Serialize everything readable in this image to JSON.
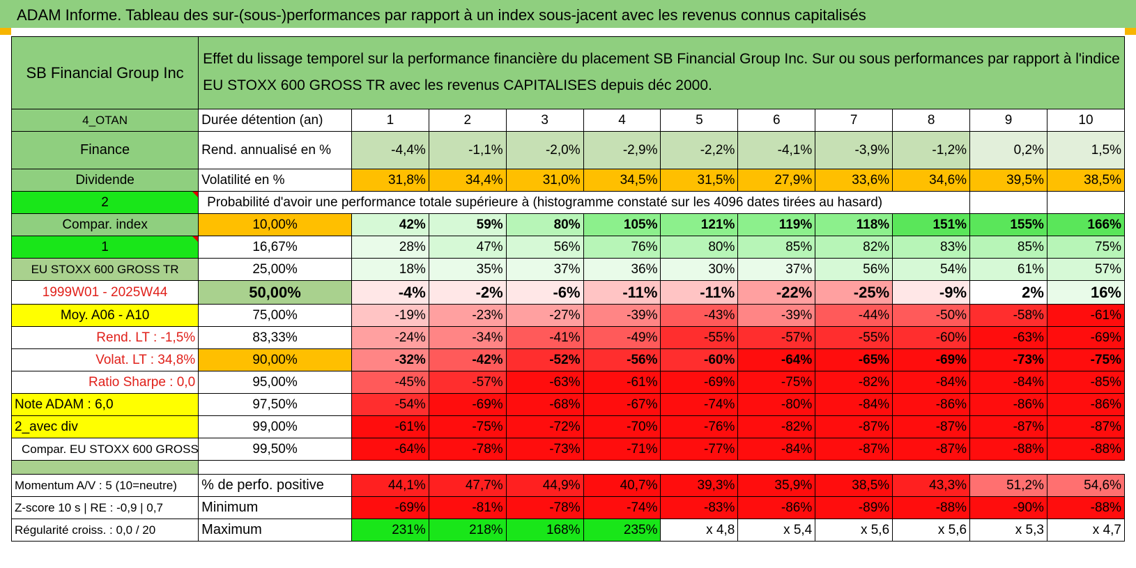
{
  "header": {
    "title": "ADAM Informe. Tableau des sur-(sous-)performances par rapport à un index sous-jacent avec les revenus connus capitalisés",
    "company": "SB Financial Group Inc",
    "description": "Effet du lissage temporel sur la performance financière du placement SB Financial Group Inc. Sur ou sous performances par rapport à l'indice EU STOXX 600 GROSS TR avec les revenus CAPITALISES depuis déc 2000."
  },
  "colors": {
    "header_green": "#8fcf7f",
    "bright_green": "#19e619",
    "yellow": "#ffff00",
    "orange": "#ffbf00",
    "deep_red": "#ff0000"
  },
  "horizons": [
    "1",
    "2",
    "3",
    "4",
    "5",
    "6",
    "7",
    "8",
    "9",
    "10"
  ],
  "side": {
    "code": "4_OTAN",
    "sector": "Finance",
    "category": "Dividende",
    "sel1": "2",
    "compar_label": "Compar. index",
    "sel2": "1",
    "index_name": "EU STOXX 600 GROSS TR",
    "period": "1999W01 - 2025W44",
    "avg": "Moy. A06 - A10",
    "rend_lt": "Rend. LT :   -1,5%",
    "volat_lt": "Volat. LT :   34,8%",
    "sharpe": "Ratio Sharpe :    0,0",
    "note": "Note ADAM : 6,0",
    "mode": "2_avec div",
    "compar_full": "Compar. EU STOXX 600 GROSS TR",
    "momentum": "Momentum A/V : 5 (10=neutre)",
    "zscore": "Z-score 10 s | RE : -0,9 | 0,7",
    "regularite": "Régularité croiss. : 0,0 / 20"
  },
  "labels": {
    "holding": "Durée détention (an)",
    "rend": "Rend. annualisé en %",
    "vol": "Volatilité en %",
    "probability": "Probabilité d'avoir une performance totale supérieure à (histogramme constaté sur les 4096 dates tirées au hasard)",
    "pct_pos": "% de perfo. positive",
    "min": "Minimum",
    "max": "Maximum"
  },
  "rend": [
    "-4,4%",
    "-1,1%",
    "-2,0%",
    "-2,9%",
    "-2,2%",
    "-4,1%",
    "-3,9%",
    "-1,2%",
    "0,2%",
    "1,5%"
  ],
  "vol": [
    "31,8%",
    "34,4%",
    "31,0%",
    "34,5%",
    "31,5%",
    "27,9%",
    "33,6%",
    "34,6%",
    "39,5%",
    "38,5%"
  ],
  "quantiles": [
    {
      "level": "10,00%",
      "values": [
        "42%",
        "59%",
        "80%",
        "105%",
        "121%",
        "119%",
        "118%",
        "151%",
        "155%",
        "166%"
      ]
    },
    {
      "level": "16,67%",
      "values": [
        "28%",
        "47%",
        "56%",
        "76%",
        "80%",
        "85%",
        "82%",
        "83%",
        "85%",
        "75%"
      ]
    },
    {
      "level": "25,00%",
      "values": [
        "18%",
        "35%",
        "37%",
        "36%",
        "30%",
        "37%",
        "56%",
        "54%",
        "61%",
        "57%"
      ]
    },
    {
      "level": "50,00%",
      "values": [
        "-4%",
        "-2%",
        "-6%",
        "-11%",
        "-11%",
        "-22%",
        "-25%",
        "-9%",
        "2%",
        "16%"
      ]
    },
    {
      "level": "75,00%",
      "values": [
        "-19%",
        "-23%",
        "-27%",
        "-39%",
        "-43%",
        "-39%",
        "-44%",
        "-50%",
        "-58%",
        "-61%"
      ]
    },
    {
      "level": "83,33%",
      "values": [
        "-24%",
        "-34%",
        "-41%",
        "-49%",
        "-55%",
        "-57%",
        "-55%",
        "-60%",
        "-63%",
        "-69%"
      ]
    },
    {
      "level": "90,00%",
      "values": [
        "-32%",
        "-42%",
        "-52%",
        "-56%",
        "-60%",
        "-64%",
        "-65%",
        "-69%",
        "-73%",
        "-75%"
      ]
    },
    {
      "level": "95,00%",
      "values": [
        "-45%",
        "-57%",
        "-63%",
        "-61%",
        "-69%",
        "-75%",
        "-82%",
        "-84%",
        "-84%",
        "-85%"
      ]
    },
    {
      "level": "97,50%",
      "values": [
        "-54%",
        "-69%",
        "-68%",
        "-67%",
        "-74%",
        "-80%",
        "-84%",
        "-86%",
        "-86%",
        "-86%"
      ]
    },
    {
      "level": "99,00%",
      "values": [
        "-61%",
        "-75%",
        "-72%",
        "-70%",
        "-76%",
        "-82%",
        "-87%",
        "-87%",
        "-87%",
        "-87%"
      ]
    },
    {
      "level": "99,50%",
      "values": [
        "-64%",
        "-78%",
        "-73%",
        "-71%",
        "-77%",
        "-84%",
        "-87%",
        "-87%",
        "-88%",
        "-88%"
      ]
    }
  ],
  "pct_pos": [
    "44,1%",
    "47,7%",
    "44,9%",
    "40,7%",
    "39,3%",
    "35,9%",
    "38,5%",
    "43,3%",
    "51,2%",
    "54,6%"
  ],
  "minimum": [
    "-69%",
    "-81%",
    "-78%",
    "-74%",
    "-83%",
    "-86%",
    "-89%",
    "-88%",
    "-90%",
    "-88%"
  ],
  "maximum": [
    "231%",
    "218%",
    "168%",
    "235%",
    "x 4,8",
    "x 5,4",
    "x 5,6",
    "x 5,6",
    "x 5,3",
    "x 4,7"
  ]
}
